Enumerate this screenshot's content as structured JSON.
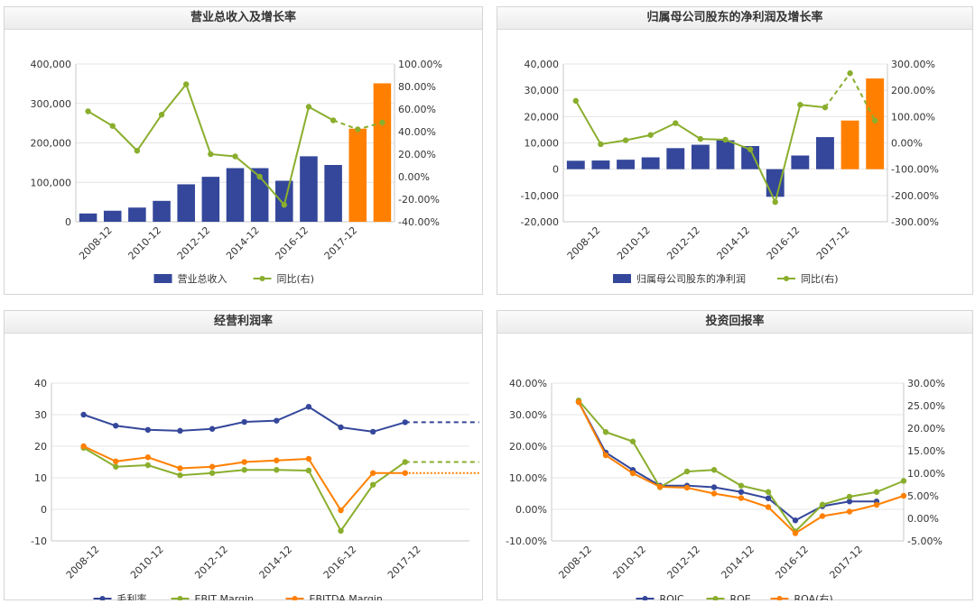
{
  "panels": [
    {
      "title": "营业总收入及增长率"
    },
    {
      "title": "归属母公司股东的净利润及增长率"
    },
    {
      "title": "经营利润率"
    },
    {
      "title": "投资回报率"
    }
  ],
  "chart_data": [
    {
      "type": "bar",
      "title": "营业总收入及增长率",
      "x_tick_labels": [
        "2008-12",
        "2010-12",
        "2012-12",
        "2014-12",
        "2016-12",
        "2017-12"
      ],
      "ylim": [
        0,
        400000
      ],
      "y_ticks": [
        "0",
        "100,000",
        "200,000",
        "300,000",
        "400,000"
      ],
      "y2lim": [
        -40,
        100
      ],
      "y2_ticks": [
        "-40.00%",
        "-20.00%",
        "0.00%",
        "20.00%",
        "40.00%",
        "60.00%",
        "80.00%",
        "100.00%"
      ],
      "series": [
        {
          "name": "营业总收入",
          "kind": "bar",
          "axis": "left",
          "color": "#34479a",
          "forecast_color": "#ff8000",
          "values": [
            21000,
            28000,
            36000,
            53000,
            95000,
            114000,
            136000,
            136000,
            104000,
            166000,
            144000,
            236000,
            351000
          ],
          "forecast": [
            false,
            false,
            false,
            false,
            false,
            false,
            false,
            false,
            false,
            false,
            false,
            true,
            true
          ]
        },
        {
          "name": "同比(右)",
          "kind": "line",
          "axis": "right",
          "color": "#8aae2d",
          "values": [
            58,
            45,
            23,
            55,
            82,
            20,
            18,
            0,
            -25,
            62,
            50,
            42,
            48
          ],
          "forecast": [
            false,
            false,
            false,
            false,
            false,
            false,
            false,
            false,
            false,
            false,
            false,
            true,
            true
          ]
        }
      ]
    },
    {
      "type": "bar",
      "title": "归属母公司股东的净利润及增长率",
      "x_tick_labels": [
        "2008-12",
        "2010-12",
        "2012-12",
        "2014-12",
        "2016-12",
        "2017-12"
      ],
      "ylim": [
        -20000,
        40000
      ],
      "y_ticks": [
        "-20,000",
        "-10,000",
        "0",
        "10,000",
        "20,000",
        "30,000",
        "40,000"
      ],
      "y2lim": [
        -300,
        300
      ],
      "y2_ticks": [
        "-300.00%",
        "-200.00%",
        "-100.00%",
        "0.00%",
        "100.00%",
        "200.00%",
        "300.00%"
      ],
      "series": [
        {
          "name": "归属母公司股东的净利润",
          "kind": "bar",
          "axis": "left",
          "color": "#34479a",
          "forecast_color": "#ff8000",
          "values": [
            3200,
            3300,
            3600,
            4500,
            8000,
            9300,
            11000,
            8800,
            -10500,
            5200,
            12200,
            18500,
            34500
          ],
          "forecast": [
            false,
            false,
            false,
            false,
            false,
            false,
            false,
            false,
            false,
            false,
            false,
            true,
            true
          ]
        },
        {
          "name": "同比(右)",
          "kind": "line",
          "axis": "right",
          "color": "#8aae2d",
          "values": [
            160,
            -5,
            10,
            30,
            75,
            15,
            12,
            -25,
            -225,
            145,
            135,
            265,
            85
          ],
          "forecast": [
            false,
            false,
            false,
            false,
            false,
            false,
            false,
            false,
            false,
            false,
            false,
            true,
            true
          ]
        }
      ]
    },
    {
      "type": "line",
      "title": "经营利润率",
      "x_tick_labels": [
        "2008-12",
        "2010-12",
        "2012-12",
        "2014-12",
        "2016-12",
        "2017-12"
      ],
      "ylim": [
        -10,
        40
      ],
      "y_ticks": [
        "-10",
        "0",
        "10",
        "20",
        "30",
        "40"
      ],
      "series": [
        {
          "name": "毛利率",
          "color": "#34479a",
          "values": [
            30,
            26.5,
            25.2,
            24.9,
            25.5,
            27.7,
            28.1,
            32.5,
            26,
            24.6,
            27.6
          ],
          "forecast_value": 27.6
        },
        {
          "name": "EBIT Margin",
          "color": "#8aae2d",
          "values": [
            19.5,
            13.5,
            14,
            10.8,
            11.5,
            12.5,
            12.5,
            12.3,
            -6.8,
            7.8,
            15
          ],
          "forecast_value": 15
        },
        {
          "name": "EBITDA Margin",
          "color": "#ff8000",
          "values": [
            20,
            15.2,
            16.5,
            13,
            13.5,
            15,
            15.5,
            16,
            -0.3,
            11.5,
            11.5
          ],
          "forecast_value": 11.5
        }
      ]
    },
    {
      "type": "line",
      "title": "投资回报率",
      "x_tick_labels": [
        "2008-12",
        "2010-12",
        "2012-12",
        "2014-12",
        "2016-12",
        "2017-12"
      ],
      "ylim": [
        -10,
        40
      ],
      "y_ticks": [
        "-10.00%",
        "0.00%",
        "10.00%",
        "20.00%",
        "30.00%",
        "40.00%"
      ],
      "y2lim": [
        -5,
        30
      ],
      "y2_ticks": [
        "-5.00%",
        "0.00%",
        "5.00%",
        "10.00%",
        "15.00%",
        "20.00%",
        "25.00%",
        "30.00%"
      ],
      "series": [
        {
          "name": "ROIC",
          "axis": "left",
          "color": "#34479a",
          "values": [
            34,
            18,
            12.5,
            7.5,
            7.5,
            7,
            5.5,
            3.5,
            -3.5,
            1,
            2.5,
            2.5
          ]
        },
        {
          "name": "ROE",
          "axis": "left",
          "color": "#8aae2d",
          "values": [
            34.5,
            24.5,
            21.5,
            7,
            12,
            12.5,
            7.5,
            5.5,
            -7,
            1.5,
            4,
            5.5,
            9
          ]
        },
        {
          "name": "ROA(右)",
          "axis": "right",
          "color": "#ff8000",
          "values": [
            25.8,
            14,
            10,
            7,
            6.8,
            5.5,
            4.5,
            2.5,
            -3.3,
            0.5,
            1.5,
            3,
            5
          ]
        }
      ]
    }
  ]
}
